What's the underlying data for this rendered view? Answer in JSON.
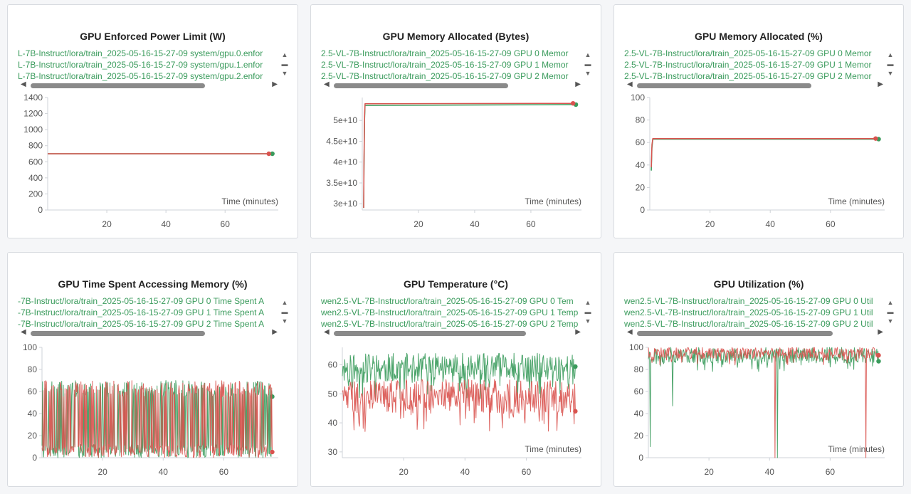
{
  "chart_data": [
    {
      "type": "line",
      "title": "GPU Enforced Power Limit (W)",
      "xlabel": "Time (minutes)",
      "xlim": [
        0,
        78
      ],
      "ylim": [
        0,
        1400
      ],
      "x_ticks": [
        20,
        40,
        60
      ],
      "y_ticks": [
        0,
        200,
        400,
        600,
        800,
        1000,
        1200,
        1400
      ],
      "y_tick_labels": [
        "0",
        "200",
        "400",
        "600",
        "800",
        "1000",
        "1200",
        "1400"
      ],
      "grid": false,
      "legend": [
        "L-7B-Instruct/lora/train_2025-05-16-15-27-09 system/gpu.0.enfor",
        "L-7B-Instruct/lora/train_2025-05-16-15-27-09 system/gpu.1.enfor",
        "L-7B-Instruct/lora/train_2025-05-16-15-27-09 system/gpu.2.enfor"
      ],
      "series": [
        {
          "color": "#3a9b5c",
          "x": [
            0,
            76
          ],
          "y": [
            700,
            700
          ]
        },
        {
          "color": "#d9534f",
          "x": [
            0,
            74.8
          ],
          "y": [
            700,
            700
          ]
        }
      ]
    },
    {
      "type": "line",
      "title": "GPU Memory Allocated (Bytes)",
      "xlabel": "Time (minutes)",
      "xlim": [
        0,
        78
      ],
      "ylim": [
        28500000000,
        55500000000
      ],
      "x_ticks": [
        20,
        40,
        60
      ],
      "y_ticks": [
        30000000000,
        35000000000,
        40000000000,
        45000000000,
        50000000000
      ],
      "y_tick_labels": [
        "3e+10",
        "3.5e+10",
        "4e+10",
        "4.5e+10",
        "5e+10"
      ],
      "grid": false,
      "legend": [
        "2.5-VL-7B-Instruct/lora/train_2025-05-16-15-27-09 GPU 0 Memor",
        "2.5-VL-7B-Instruct/lora/train_2025-05-16-15-27-09 GPU 1 Memor",
        "2.5-VL-7B-Instruct/lora/train_2025-05-16-15-27-09 GPU 2 Memor"
      ],
      "series": [
        {
          "color": "#3a9b5c",
          "x": [
            0.5,
            0.6,
            0.8,
            1.0,
            76
          ],
          "y": [
            29000000000,
            38000000000,
            50000000000,
            53600000000,
            53800000000
          ]
        },
        {
          "color": "#d9534f",
          "x": [
            0.5,
            0.6,
            0.8,
            1.0,
            75
          ],
          "y": [
            29000000000,
            40000000000,
            51000000000,
            54000000000,
            54100000000
          ]
        }
      ]
    },
    {
      "type": "line",
      "title": "GPU Memory Allocated (%)",
      "xlabel": "Time (minutes)",
      "xlim": [
        0,
        78
      ],
      "ylim": [
        0,
        100
      ],
      "x_ticks": [
        20,
        40,
        60
      ],
      "y_ticks": [
        0,
        20,
        40,
        60,
        80,
        100
      ],
      "y_tick_labels": [
        "0",
        "20",
        "40",
        "60",
        "80",
        "100"
      ],
      "grid": false,
      "legend": [
        "2.5-VL-7B-Instruct/lora/train_2025-05-16-15-27-09 GPU 0 Memor",
        "2.5-VL-7B-Instruct/lora/train_2025-05-16-15-27-09 GPU 1 Memor",
        "2.5-VL-7B-Instruct/lora/train_2025-05-16-15-27-09 GPU 2 Memor"
      ],
      "series": [
        {
          "color": "#3a9b5c",
          "x": [
            0.5,
            0.7,
            1.0,
            76
          ],
          "y": [
            35,
            55,
            63,
            63
          ]
        },
        {
          "color": "#d9534f",
          "x": [
            0.5,
            0.7,
            1.0,
            75
          ],
          "y": [
            38,
            58,
            63.5,
            63.5
          ]
        }
      ]
    },
    {
      "type": "line",
      "title": "GPU Time Spent Accessing Memory (%)",
      "xlabel": "",
      "xlim": [
        0,
        78
      ],
      "ylim": [
        0,
        100
      ],
      "x_ticks": [
        20,
        40,
        60
      ],
      "y_ticks": [
        0,
        20,
        40,
        60,
        80,
        100
      ],
      "y_tick_labels": [
        "0",
        "20",
        "40",
        "60",
        "80",
        "100"
      ],
      "grid": false,
      "legend": [
        "-7B-Instruct/lora/train_2025-05-16-15-27-09 GPU 0 Time Spent A",
        "-7B-Instruct/lora/train_2025-05-16-15-27-09 GPU 1 Time Spent A",
        "-7B-Instruct/lora/train_2025-05-16-15-27-09 GPU 2 Time Spent A"
      ],
      "noise": {
        "x_start": 0,
        "x_end": 76,
        "n": 420,
        "seed": 7,
        "mode": "bimodal",
        "hi": [
          55,
          70
        ],
        "lo": [
          0,
          12
        ],
        "lo_prob": 0.55
      },
      "series": [
        {
          "color": "#3a9b5c"
        },
        {
          "color": "#d9534f"
        }
      ]
    },
    {
      "type": "line",
      "title": "GPU Temperature (°C)",
      "xlabel": "Time (minutes)",
      "xlim": [
        0,
        78
      ],
      "ylim": [
        28,
        66
      ],
      "x_ticks": [
        20,
        40,
        60
      ],
      "y_ticks": [
        30,
        40,
        50,
        60
      ],
      "y_tick_labels": [
        "30",
        "40",
        "50",
        "60"
      ],
      "grid": false,
      "legend": [
        "wen2.5-VL-7B-Instruct/lora/train_2025-05-16-15-27-09 GPU 0 Tem",
        "wen2.5-VL-7B-Instruct/lora/train_2025-05-16-15-27-09 GPU 1 Temp",
        "wen2.5-VL-7B-Instruct/lora/train_2025-05-16-15-27-09 GPU 2 Temp"
      ],
      "noise": {
        "x_start": 0,
        "x_end": 76,
        "n": 380,
        "seed": 11,
        "mode": "band"
      },
      "series": [
        {
          "color": "#3a9b5c",
          "band": [
            48,
            64
          ]
        },
        {
          "color": "#d9534f",
          "band": [
            37,
            55
          ]
        }
      ]
    },
    {
      "type": "line",
      "title": "GPU Utilization (%)",
      "xlabel": "Time (minutes)",
      "xlim": [
        0,
        78
      ],
      "ylim": [
        0,
        100
      ],
      "x_ticks": [
        20,
        40,
        60
      ],
      "y_ticks": [
        0,
        20,
        40,
        60,
        80,
        100
      ],
      "y_tick_labels": [
        "0",
        "20",
        "40",
        "60",
        "80",
        "100"
      ],
      "grid": false,
      "legend": [
        "wen2.5-VL-7B-Instruct/lora/train_2025-05-16-15-27-09 GPU 0 Util",
        "wen2.5-VL-7B-Instruct/lora/train_2025-05-16-15-27-09 GPU 1 Util",
        "wen2.5-VL-7B-Instruct/lora/train_2025-05-16-15-27-09 GPU 2 Util"
      ],
      "noise": {
        "x_start": 0,
        "x_end": 76,
        "n": 380,
        "seed": 23,
        "mode": "band"
      },
      "series": [
        {
          "color": "#3a9b5c",
          "band": [
            78,
            100
          ],
          "spikes": [
            [
              0.5,
              10
            ],
            [
              8.0,
              47
            ],
            [
              42.5,
              0
            ]
          ]
        },
        {
          "color": "#d9534f",
          "band": [
            84,
            100
          ],
          "spikes": [
            [
              41.8,
              0
            ],
            [
              71.8,
              0
            ]
          ]
        }
      ]
    }
  ],
  "ui": {
    "scroll_up": "▲",
    "scroll_mid": "▬",
    "scroll_down": "▼",
    "scroll_left": "◀",
    "scroll_right": "▶"
  }
}
